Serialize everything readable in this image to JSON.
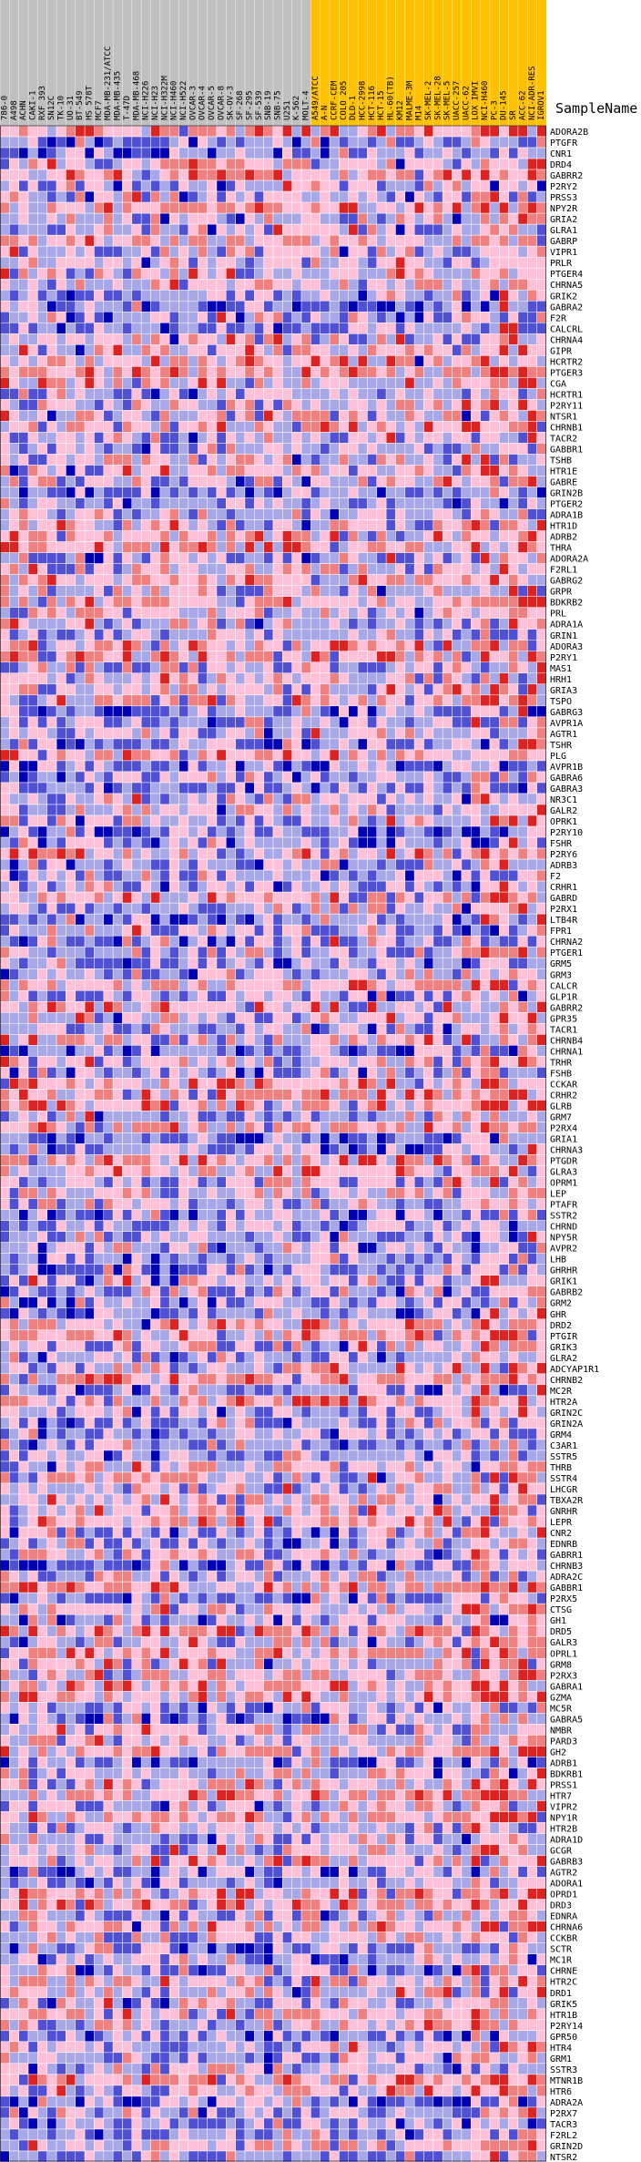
{
  "chart_data": {
    "type": "heatmap",
    "samplename_label": "SampleName",
    "columns": [
      "786-0",
      "A498",
      "ACHN",
      "CAKI-1",
      "RXF 393",
      "SN12C",
      "TK-10",
      "UO-31",
      "BT-549",
      "HS 578T",
      "MCF7",
      "MDA-MB-231/ATCC",
      "MDA-MB-435",
      "T-47D",
      "MDA-MB-468",
      "NCI-H226",
      "NCI-H23",
      "NCI-H322M",
      "NCI-H460",
      "NCI-H522",
      "OVCAR-3",
      "OVCAR-4",
      "OVCAR-5",
      "OVCAR-8",
      "SK-OV-3",
      "SF-268",
      "SF-295",
      "SF-539",
      "SNB-19",
      "SNB-75",
      "U251",
      "K-562",
      "MOLT-4",
      "A549/ATCC",
      "A-N",
      "CCRF-CEM",
      "COLO 205",
      "DLD-1",
      "HCC-2998",
      "HCT-116",
      "HCT-15",
      "HL-60(TB)",
      "KM12",
      "MALME-3M",
      "M14",
      "SK-MEL-2",
      "SK-MEL-28",
      "SK-MEL-5",
      "UACC-257",
      "UACC-62",
      "LOX IMVI",
      "NCI-H460",
      "PC-3",
      "DU-145",
      "SR",
      "ACC-62",
      "NCI-ADR-RES",
      "IGROV1"
    ],
    "column_groups": [
      {
        "name": "group-a",
        "count": 33,
        "color": "#c0c0c0"
      },
      {
        "name": "group-b",
        "count": 25,
        "color": "#ffc000"
      }
    ],
    "rows": [
      "ADORA2B",
      "PTGFR",
      "CNR1",
      "DRD4",
      "GABRR2",
      "P2RY2",
      "PRSS3",
      "NPY2R",
      "GRIA2",
      "GLRA1",
      "GABRP",
      "VIPR1",
      "PRLR",
      "PTGER4",
      "CHRNA5",
      "GRIK2",
      "GABRA2",
      "F2R",
      "CALCRL",
      "CHRNA4",
      "GIPR",
      "HCRTR2",
      "PTGER3",
      "CGA",
      "HCRTR1",
      "P2RY11",
      "NTSR1",
      "CHRNB1",
      "TACR2",
      "GABBR1",
      "TSHB",
      "HTR1E",
      "GABRE",
      "GRIN2B",
      "PTGER2",
      "ADRA1B",
      "HTR1D",
      "ADRB2",
      "THRA",
      "ADORA2A",
      "F2RL1",
      "GABRG2",
      "GRPR",
      "BDKRB2",
      "PRL",
      "ADRA1A",
      "GRIN1",
      "ADORA3",
      "P2RY1",
      "MAS1",
      "HRH1",
      "GRIA3",
      "TSPO",
      "GABRG3",
      "AVPR1A",
      "AGTR1",
      "TSHR",
      "PLG",
      "AVPR1B",
      "GABRA6",
      "GABRA3",
      "NR3C1",
      "GALR2",
      "OPRK1",
      "P2RY10",
      "FSHR",
      "P2RY6",
      "ADRB3",
      "F2",
      "CRHR1",
      "GABRD",
      "P2RX1",
      "LTB4R",
      "FPR1",
      "CHRNA2",
      "PTGER1",
      "GRM5",
      "GRM3",
      "CALCR",
      "GLP1R",
      "GABRR2",
      "GPR35",
      "TACR1",
      "CHRNB4",
      "CHRNA1",
      "TRHR",
      "FSHB",
      "CCKAR",
      "CRHR2",
      "GLRB",
      "GRM7",
      "P2RX4",
      "GRIA1",
      "CHRNA3",
      "PTGDR",
      "GLRA3",
      "OPRM1",
      "LEP",
      "PTAFR",
      "SSTR2",
      "CHRND",
      "NPY5R",
      "AVPR2",
      "LHB",
      "GHRHR",
      "GRIK1",
      "GABRB2",
      "GRM2",
      "GHR",
      "DRD2",
      "PTGIR",
      "GRIK3",
      "GLRA2",
      "ADCYAP1R1",
      "CHRNB2",
      "MC2R",
      "HTR2A",
      "GRIN2C",
      "GRIN2A",
      "GRM4",
      "C3AR1",
      "SSTR5",
      "THRB",
      "SSTR4",
      "LHCGR",
      "TBXA2R",
      "GNRHR",
      "LEPR",
      "CNR2",
      "EDNRB",
      "GABRR1",
      "CHRNB3",
      "ADRA2C",
      "GABBR1",
      "P2RX5",
      "CTSG",
      "GH1",
      "DRD5",
      "GALR3",
      "OPRL1",
      "GRM8",
      "P2RX3",
      "GABRA1",
      "GZMA",
      "MC5R",
      "GABRA5",
      "NMBR",
      "PARD3",
      "GH2",
      "ADRB1",
      "BDKRB1",
      "PRSS1",
      "HTR7",
      "VIPR2",
      "NPY1R",
      "HTR2B",
      "ADRA1D",
      "GCGR",
      "GABRB3",
      "AGTR2",
      "ADORA1",
      "OPRD1",
      "DRD3",
      "EDNRA",
      "CHRNA6",
      "CCKBR",
      "SCTR",
      "MC1R",
      "CHRNE",
      "HTR2C",
      "DRD1",
      "GRIK5",
      "HTR1B",
      "P2RY14",
      "GPR50",
      "HTR4",
      "GRM1",
      "SSTR3",
      "MTNR1B",
      "HTR6",
      "ADRA2A",
      "P2RX7",
      "TACR3",
      "F2RL2",
      "GRIN2D",
      "NTSR2"
    ],
    "color_scale": [
      "#0000b4",
      "#5050d4",
      "#a8a8e8",
      "#ffc0d8",
      "#f08080",
      "#dd2222"
    ],
    "value_range": [
      -3,
      3
    ]
  }
}
